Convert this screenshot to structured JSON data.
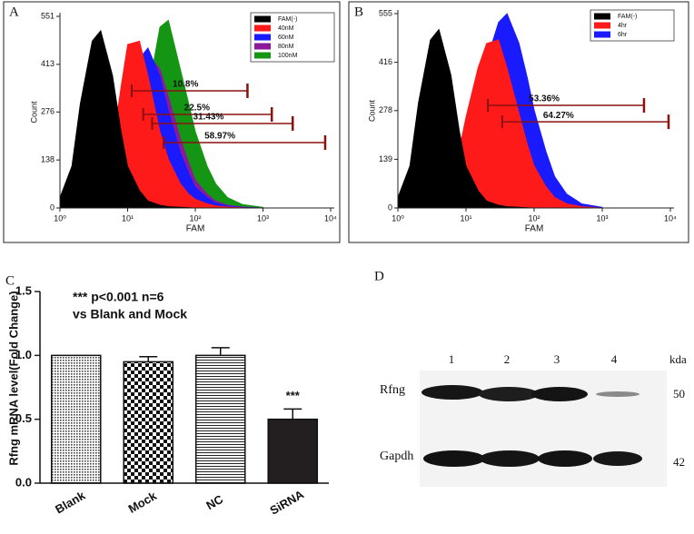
{
  "chart_data": [
    {
      "type": "area",
      "panel": "A",
      "xlabel": "FAM",
      "ylabel": "Count",
      "xscale": "log",
      "legend": "top-right",
      "xlim": [
        1,
        10000
      ],
      "ylim": [
        0,
        551
      ],
      "xticks": [
        {
          "value": 1,
          "label": "10⁰"
        },
        {
          "value": 10,
          "label": "10¹"
        },
        {
          "value": 100,
          "label": "10²"
        },
        {
          "value": 1000,
          "label": "10³"
        },
        {
          "value": 10000,
          "label": "10⁴"
        }
      ],
      "yticks": [
        0,
        138,
        276,
        413,
        551
      ],
      "x": [
        1,
        1.5,
        2,
        3,
        4,
        6,
        8,
        10,
        15,
        20,
        30,
        40,
        60,
        80,
        100,
        150,
        200,
        300,
        500,
        1000
      ],
      "series": [
        {
          "name": "FAM(-)",
          "color": "#000000",
          "values": [
            30,
            120,
            300,
            480,
            510,
            380,
            220,
            120,
            50,
            20,
            8,
            4,
            2,
            1,
            0,
            0,
            0,
            0,
            0,
            0
          ]
        },
        {
          "name": "40nM",
          "color": "#ff1a1a",
          "values": [
            0,
            2,
            5,
            20,
            50,
            180,
            350,
            470,
            480,
            380,
            220,
            140,
            70,
            40,
            25,
            12,
            6,
            3,
            1,
            0
          ]
        },
        {
          "name": "60nM",
          "color": "#1a1aff",
          "values": [
            0,
            0,
            0,
            5,
            15,
            60,
            150,
            260,
            430,
            460,
            380,
            280,
            160,
            100,
            60,
            30,
            15,
            6,
            2,
            0
          ]
        },
        {
          "name": "80nM",
          "color": "#8b1a9a",
          "values": [
            0,
            0,
            0,
            2,
            8,
            40,
            110,
            200,
            380,
            440,
            400,
            320,
            200,
            130,
            80,
            40,
            20,
            8,
            3,
            0
          ]
        },
        {
          "name": "100nM",
          "color": "#149614",
          "values": [
            0,
            0,
            0,
            1,
            3,
            15,
            40,
            90,
            220,
            330,
            520,
            540,
            400,
            300,
            220,
            120,
            70,
            30,
            10,
            2
          ]
        }
      ],
      "gates": [
        {
          "label": "10.8%",
          "x": [
            11.5,
            590
          ],
          "y": 337
        },
        {
          "label": "22.5%",
          "x": [
            17,
            1350
          ],
          "y": 269
        },
        {
          "label": "31.43%",
          "x": [
            23,
            2750
          ],
          "y": 243
        },
        {
          "label": "58.97%",
          "x": [
            34,
            8300
          ],
          "y": 188
        }
      ]
    },
    {
      "type": "area",
      "panel": "B",
      "xlabel": "FAM",
      "ylabel": "Count",
      "xscale": "log",
      "legend": "top-right",
      "xlim": [
        1,
        10000
      ],
      "ylim": [
        0,
        555
      ],
      "xticks": [
        {
          "value": 1,
          "label": "10⁰"
        },
        {
          "value": 10,
          "label": "10¹"
        },
        {
          "value": 100,
          "label": "10²"
        },
        {
          "value": 1000,
          "label": "10³"
        },
        {
          "value": 10000,
          "label": "10⁴"
        }
      ],
      "yticks": [
        0,
        139,
        278,
        416,
        555
      ],
      "x": [
        1,
        1.5,
        2,
        3,
        4,
        6,
        8,
        10,
        15,
        20,
        30,
        40,
        60,
        80,
        100,
        150,
        200,
        300,
        500,
        1000
      ],
      "series": [
        {
          "name": "FAM(-)",
          "color": "#000000",
          "values": [
            30,
            120,
            300,
            480,
            510,
            380,
            220,
            120,
            50,
            20,
            8,
            4,
            2,
            1,
            0,
            0,
            0,
            0,
            0,
            0
          ]
        },
        {
          "name": "4hr",
          "color": "#ff1a1a",
          "values": [
            0,
            1,
            3,
            10,
            30,
            90,
            170,
            260,
            400,
            470,
            480,
            400,
            270,
            180,
            120,
            60,
            30,
            12,
            4,
            0
          ]
        },
        {
          "name": "6hr",
          "color": "#1a1aff",
          "values": [
            0,
            0,
            1,
            3,
            8,
            30,
            70,
            130,
            290,
            420,
            530,
            555,
            470,
            370,
            280,
            160,
            90,
            40,
            12,
            2
          ]
        }
      ],
      "gates": [
        {
          "label": "53.36%",
          "x": [
            21,
            4100
          ],
          "y": 293
        },
        {
          "label": "64.27%",
          "x": [
            34,
            9400
          ],
          "y": 246
        }
      ]
    },
    {
      "type": "bar",
      "panel": "C",
      "ylabel": "Rfng mRNA level(Fold Change)",
      "annotations": [
        "*** p<0.001 n=6",
        "vs Blank and Mock"
      ],
      "categories": [
        "Blank",
        "Mock",
        "NC",
        "SiRNA"
      ],
      "values": [
        1.0,
        0.95,
        1.0,
        0.5
      ],
      "errors": [
        0,
        0.04,
        0.06,
        0.08
      ],
      "significance": [
        null,
        null,
        null,
        "***"
      ],
      "patterns": [
        "dots",
        "checks",
        "hlines",
        "solid"
      ],
      "color": "#231f20",
      "ylim": [
        0,
        1.5
      ],
      "yticks": [
        {
          "value": 0,
          "label": "0.0"
        },
        0.5,
        {
          "value": 1,
          "label": "1.0"
        },
        1.5
      ]
    }
  ],
  "blot": {
    "panel": "D",
    "lanes": [
      "1",
      "2",
      "3",
      "4"
    ],
    "unit": "kda",
    "rows": [
      {
        "name": "Rfng",
        "size": 50
      },
      {
        "name": "Gapdh",
        "size": 42
      }
    ]
  }
}
